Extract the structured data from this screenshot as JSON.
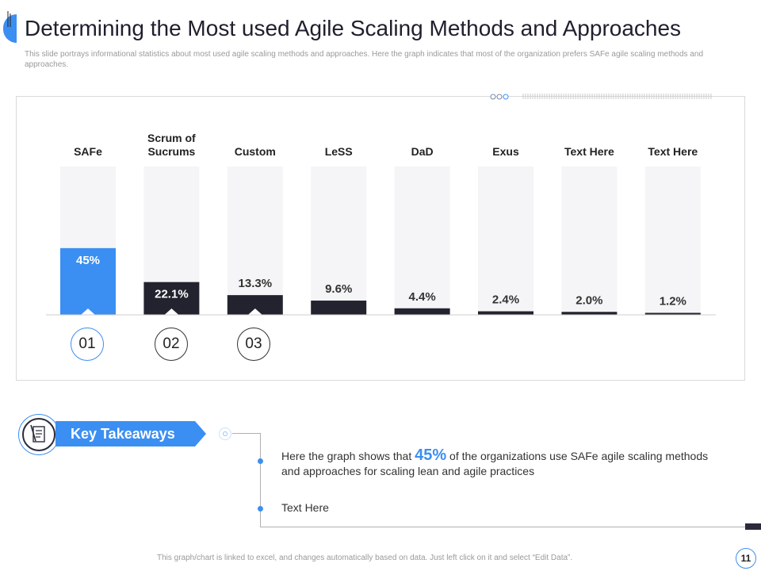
{
  "slide": {
    "title": "Determining the Most used Agile Scaling Methods and Approaches",
    "subtitle": "This slide portrays informational statistics about most used agile scaling methods and approaches. Here the graph indicates that most of the organization prefers SAFe agile scaling methods and approaches.",
    "footer_note": "This graph/chart is linked to excel, and changes automatically based on data. Just left click on it and select “Edit Data”.",
    "page_number": "11"
  },
  "chart_data": {
    "type": "bar",
    "categories": [
      "SAFe",
      "Scrum of Sucrums",
      "Custom",
      "LeSS",
      "DaD",
      "Exus",
      "Text Here",
      "Text Here"
    ],
    "values": [
      45,
      22.1,
      13.3,
      9.6,
      4.4,
      2.4,
      2.0,
      1.2
    ],
    "value_labels": [
      "45%",
      "22.1%",
      "13.3%",
      "9.6%",
      "4.4%",
      "2.4%",
      "2.0%",
      "1.2%"
    ],
    "ylim": [
      0,
      100
    ],
    "title": "",
    "xlabel": "",
    "ylabel": "",
    "bar_colors": [
      "#3b8ff2",
      "#23232f",
      "#23232f",
      "#23232f",
      "#23232f",
      "#23232f",
      "#23232f",
      "#23232f"
    ],
    "track_color": "#f5f5f7",
    "rank_labels": [
      "01",
      "02",
      "03"
    ]
  },
  "takeaways": {
    "heading": "Key Takeaways",
    "item1_prefix": "Here the graph shows that ",
    "item1_highlight": "45%",
    "item1_suffix": " of the organizations use SAFe agile scaling methods and approaches for scaling lean and agile practices",
    "item2": "Text Here"
  },
  "colors": {
    "accent": "#3b8ff2",
    "dark": "#23232f"
  }
}
